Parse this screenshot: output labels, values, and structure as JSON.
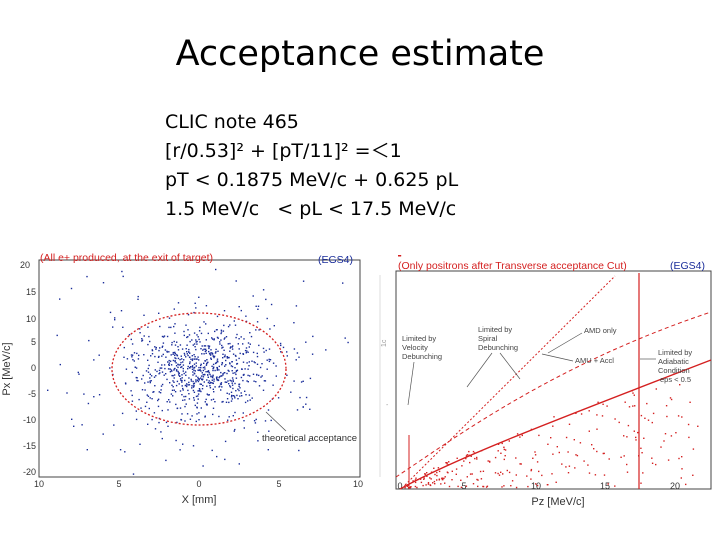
{
  "slide": {
    "title": "Acceptance estimate",
    "lines": [
      "CLIC note 465",
      "[r/0.53]² + [pT/11]² =＜1",
      "pT < 0.1875 MeV/c + 0.625 pL",
      "1.5 MeV/c   < pL < 17.5 MeV/c"
    ]
  },
  "left_plot": {
    "caption": "(All e+ produced, at the exit of target)",
    "code": "(EGS4)",
    "xlabel": "X [mm]",
    "ylabel": "Px [MeV/c]",
    "yticks": [
      "20",
      "15",
      "10",
      "5",
      "0",
      "-5",
      "-10",
      "-15",
      "-20"
    ],
    "xticks": [
      "10",
      "5",
      "0",
      "5",
      "10"
    ],
    "annotation": "theoretical acceptance",
    "colors": {
      "caption": "#d42020",
      "code": "#1a2d9a",
      "points": "#1a2d9a",
      "ellipse": "#d42020"
    }
  },
  "right_plot": {
    "caption": "(Only positrons after Transverse acceptance Cut)",
    "code": "(EGS4)",
    "xlabel": "Pz [MeV/c]",
    "xticks": [
      "0",
      "5",
      "10",
      "15",
      "20"
    ],
    "annotations": {
      "velocity": [
        "Limited by",
        "Velocity",
        "Debunching"
      ],
      "spiral": [
        "Limited by",
        "Spiral",
        "Debunching"
      ],
      "amd_only": "AMD only",
      "amd_accel": "AMU + Accl",
      "adiabatic": [
        "Limited by",
        "Adiabatic",
        "Condition",
        "eps < 0.5"
      ]
    },
    "colors": {
      "caption": "#d42020",
      "code": "#1a2d9a",
      "points": "#d42020",
      "lines": "#d42020"
    }
  }
}
